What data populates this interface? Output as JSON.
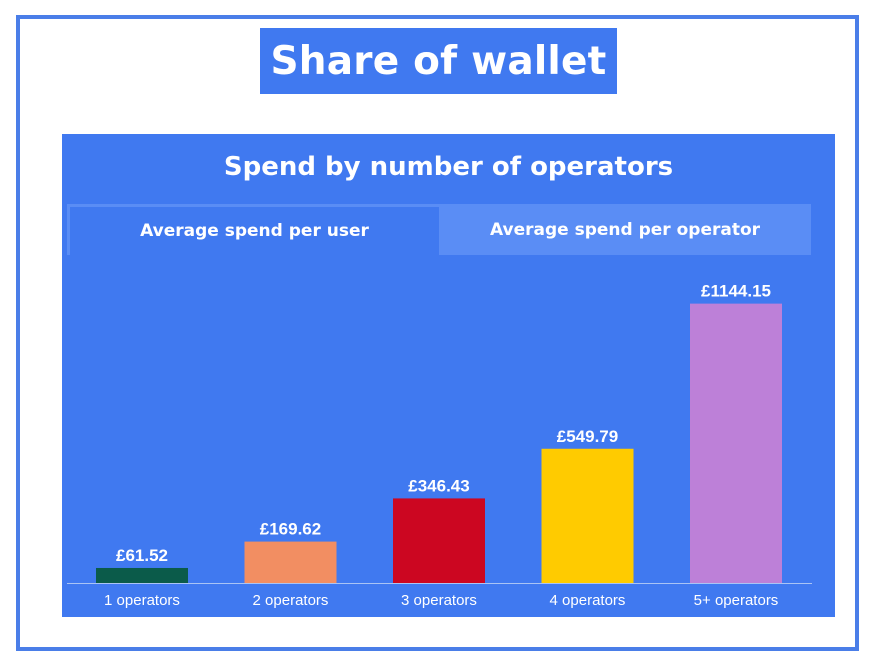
{
  "page": {
    "title": "Share of wallet"
  },
  "tabs": [
    {
      "label": "Average spend per user",
      "active": true
    },
    {
      "label": "Average spend per operator",
      "active": false
    }
  ],
  "chart_data": {
    "type": "bar",
    "title": "Spend by number of operators",
    "categories": [
      "1 operators",
      "2 operators",
      "3 operators",
      "4 operators",
      "5+ operators"
    ],
    "values": [
      61.52,
      169.62,
      346.43,
      549.79,
      1144.15
    ],
    "value_labels": [
      "£61.52",
      "£169.62",
      "£346.43",
      "£549.79",
      "£1144.15"
    ],
    "colors": [
      "#0b5b4a",
      "#f28e62",
      "#cc0621",
      "#ffcb00",
      "#bd80d8"
    ],
    "xlabel": "",
    "ylabel": "",
    "ylim": [
      0,
      1200
    ],
    "grid": false,
    "legend": "none"
  }
}
